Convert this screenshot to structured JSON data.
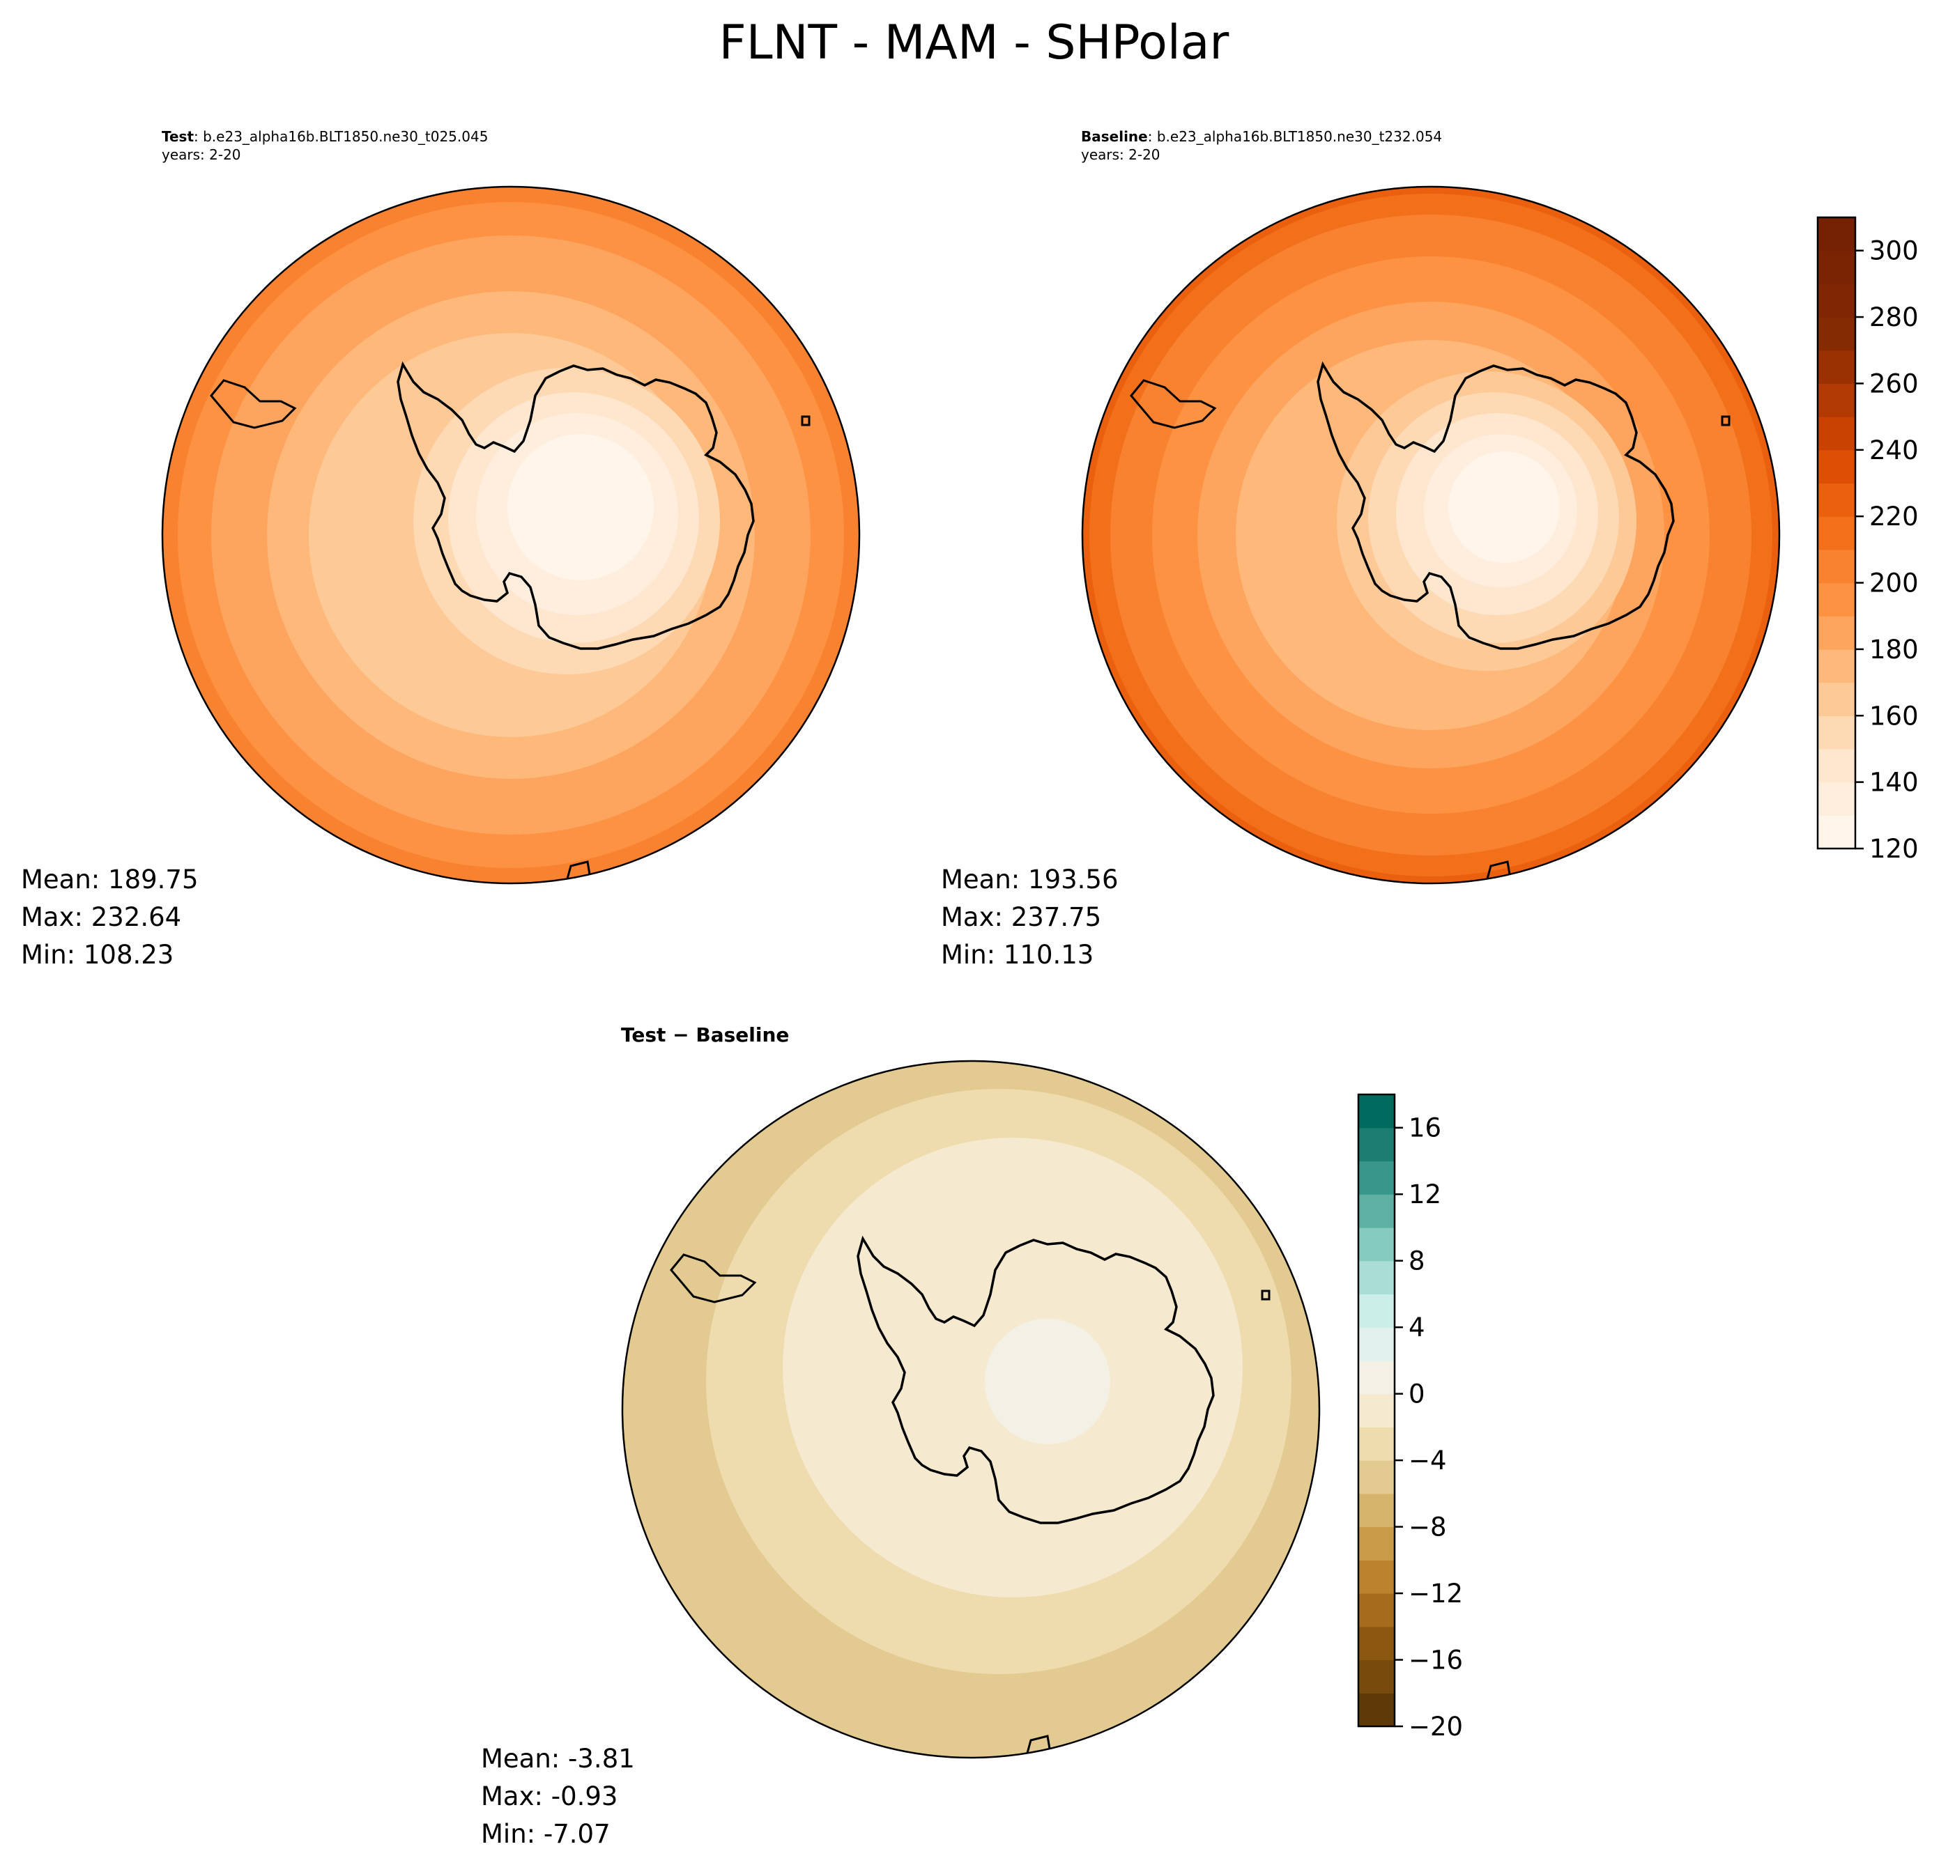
{
  "suptitle": "FLNT - MAM - SHPolar",
  "panels": {
    "test": {
      "label": "Test",
      "case": ": b.e23_alpha16b.BLT1850.ne30_t025.045",
      "years": "years: 2-20",
      "mean": "Mean: 189.75",
      "max": "Max: 232.64",
      "min": "Min: 108.23"
    },
    "baseline": {
      "label": "Baseline",
      "case": ": b.e23_alpha16b.BLT1850.ne30_t232.054",
      "years": "years: 2-20",
      "mean": "Mean: 193.56",
      "max": "Max: 237.75",
      "min": "Min: 110.13"
    },
    "diff": {
      "title": "Test − Baseline",
      "mean": "Mean: -3.81",
      "max": "Max: -0.93",
      "min": "Min: -7.07"
    }
  },
  "chart_data": [
    {
      "type": "heatmap",
      "name": "",
      "colorbar": {
        "range": [
          120,
          310
        ],
        "ticks": [
          120,
          140,
          160,
          180,
          200,
          220,
          240,
          260,
          280,
          300
        ],
        "tick_labels": [
          "120",
          "140",
          "160",
          "180",
          "200",
          "220",
          "240",
          "260",
          "280",
          "300"
        ],
        "colormap": "Oranges",
        "level_step": 10,
        "colors": [
          "#fff5eb",
          "#ffeedd",
          "#fee6cf",
          "#fdd9b4",
          "#fdc997",
          "#fdb87a",
          "#fda45e",
          "#fd9243",
          "#f98230",
          "#f3701b",
          "#ea600f",
          "#dd4f05",
          "#c94202",
          "#b13a03",
          "#9a3103",
          "#842b04",
          "#7f2704",
          "#7a2404",
          "#742104"
        ]
      },
      "stats": {
        "mean": 189.75,
        "max": 232.64,
        "min": 108.23
      }
    },
    {
      "type": "heatmap",
      "name": "",
      "colorbar": {
        "range": [
          120,
          310
        ],
        "ticks": [
          120,
          140,
          160,
          180,
          200,
          220,
          240,
          260,
          280,
          300
        ]
      },
      "stats": {
        "mean": 193.56,
        "max": 237.75,
        "min": 110.13
      }
    },
    {
      "type": "heatmap",
      "name": "",
      "colorbar": {
        "range": [
          -20,
          18
        ],
        "ticks": [
          -20,
          -16,
          -12,
          -8,
          -4,
          0,
          4,
          8,
          12,
          16
        ],
        "tick_labels": [
          "−20",
          "−16",
          "−12",
          "−8",
          "−4",
          "0",
          "4",
          "8",
          "12",
          "16"
        ],
        "colormap": "BrBG",
        "level_step": 2,
        "colors": [
          "#5f3a08",
          "#784a0c",
          "#8c5710",
          "#a76b1d",
          "#bc822e",
          "#c99a48",
          "#d6b46c",
          "#e2ca91",
          "#eedcae",
          "#f5eacf",
          "#f3f1e6",
          "#e3f1ee",
          "#cceee8",
          "#a9ddd5",
          "#85cbbf",
          "#5eb0a5",
          "#39968b",
          "#1c7e73",
          "#016a5f"
        ]
      },
      "stats": {
        "mean": -3.81,
        "max": -0.93,
        "min": -7.07
      }
    }
  ]
}
